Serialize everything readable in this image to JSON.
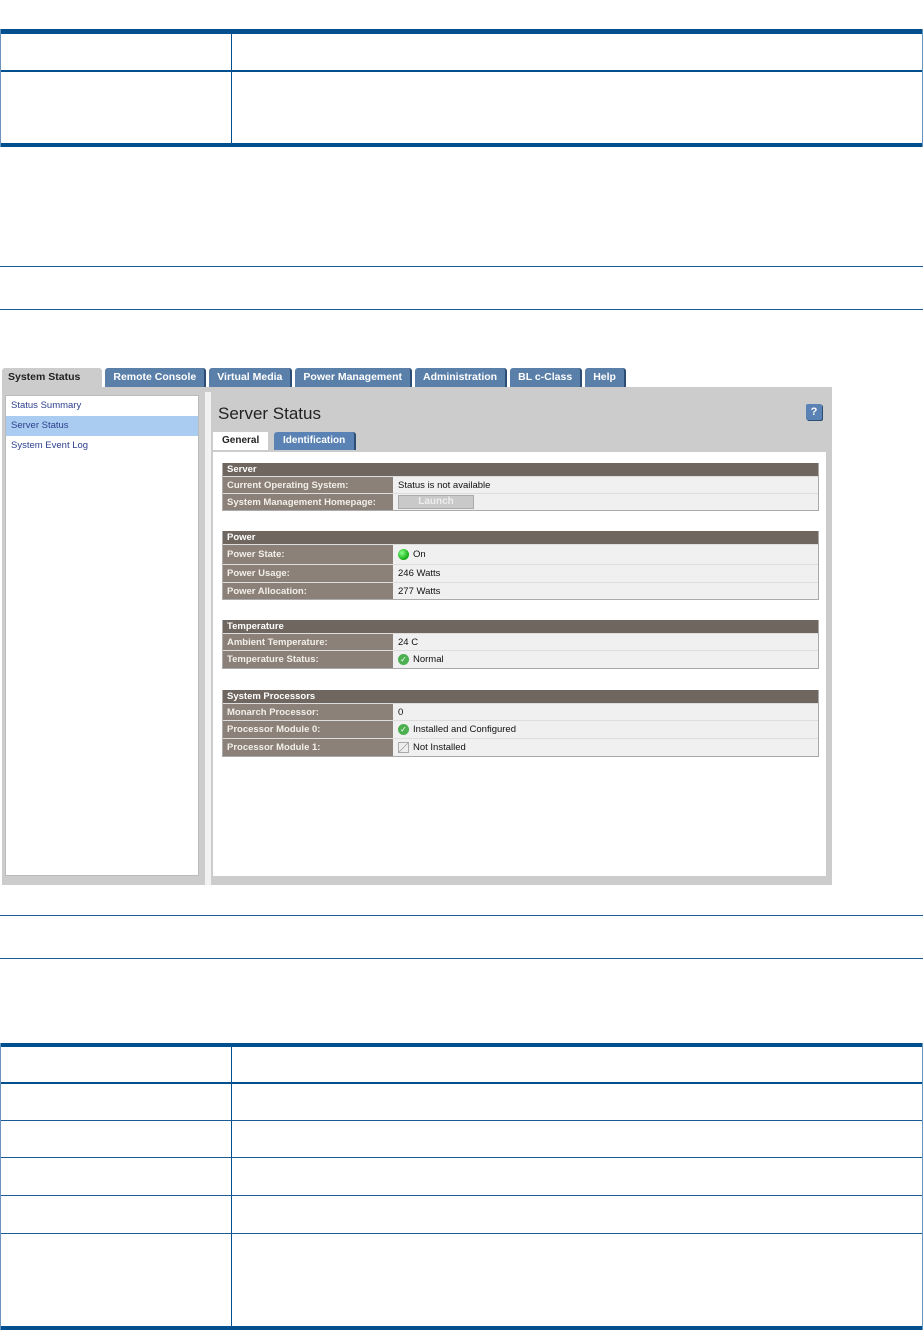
{
  "tabs": [
    "System Status",
    "Remote Console",
    "Virtual Media",
    "Power Management",
    "Administration",
    "BL c-Class",
    "Help"
  ],
  "sidebar": [
    "Status Summary",
    "Server Status",
    "System Event Log"
  ],
  "page_title": "Server Status",
  "help_label": "?",
  "subtabs": [
    "General",
    "Identification"
  ],
  "sections": [
    {
      "title": "Server",
      "rows": [
        [
          "Current Operating System:",
          "Status is not available"
        ],
        [
          "System Management Homepage:",
          "Launch"
        ]
      ]
    },
    {
      "title": "Power",
      "rows": [
        [
          "Power State:",
          "On"
        ],
        [
          "Power Usage:",
          "246 Watts"
        ],
        [
          "Power Allocation:",
          "277 Watts"
        ]
      ]
    },
    {
      "title": "Temperature",
      "rows": [
        [
          "Ambient Temperature:",
          "24 C"
        ],
        [
          "Temperature Status:",
          "Normal"
        ]
      ]
    },
    {
      "title": "System Processors",
      "rows": [
        [
          "Monarch Processor:",
          "0"
        ],
        [
          "Processor Module 0:",
          "Installed and Configured"
        ],
        [
          "Processor Module 1:",
          "Not Installed"
        ]
      ]
    }
  ],
  "colors": {
    "rule": "#00508f",
    "section_header": "#6e665f",
    "label_bg": "#8b8178",
    "tab": "#5a7fa8"
  }
}
